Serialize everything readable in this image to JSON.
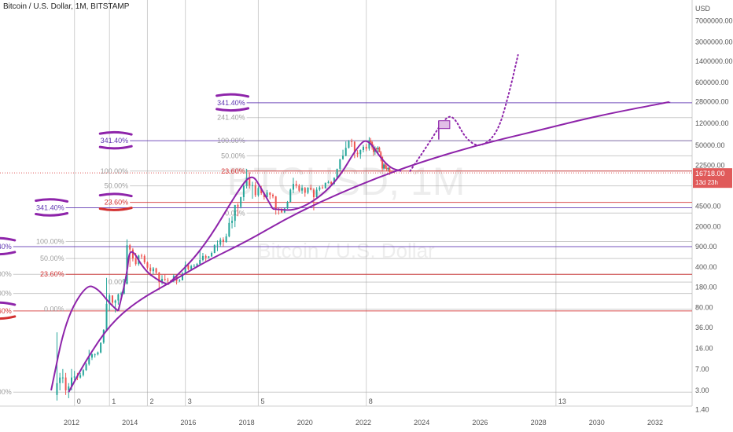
{
  "chart_data": {
    "type": "candlestick",
    "title": "Bitcoin / U.S. Dollar, 1M, BITSTAMP",
    "watermark_symbol": "BTCUSD, 1M",
    "watermark_name": "Bitcoin / U.S. Dollar",
    "y_axis_unit": "USD",
    "y_scale": "log",
    "y_ticks": [
      "7000000.00",
      "3000000.00",
      "1400000.00",
      "600000.00",
      "280000.00",
      "120000.00",
      "50000.00",
      "22500.00",
      "4500.00",
      "2000.00",
      "900.00",
      "400.00",
      "180.00",
      "80.00",
      "36.00",
      "16.00",
      "7.00",
      "3.00",
      "1.40"
    ],
    "y_tick_values": [
      7000000,
      3000000,
      1400000,
      600000,
      280000,
      120000,
      50000,
      22500,
      4500,
      2000,
      900,
      400,
      180,
      80,
      36,
      16,
      7,
      3,
      1.4
    ],
    "x_ticks": [
      "2012",
      "2014",
      "2016",
      "2018",
      "2020",
      "2022",
      "2024",
      "2026",
      "2028",
      "2030",
      "2032"
    ],
    "x_tick_values": [
      2012,
      2014,
      2016,
      2018,
      2020,
      2022,
      2024,
      2026,
      2028,
      2030,
      2032
    ],
    "cycle_markers": [
      "0",
      "1",
      "2",
      "3",
      "5",
      "8",
      "13"
    ],
    "cycle_marker_years": [
      2012.1,
      2013.3,
      2014.6,
      2015.9,
      2018.4,
      2022.1,
      2028.6
    ],
    "last_price": "16718.00",
    "countdown": "13d 23h",
    "price_line_color": "#e05a5a",
    "fib_color_gray": "#9e9e9e",
    "fib_color_red": "#d32f2f",
    "fib_color_purple": "#5e35b1",
    "annotation_color": "#8e24aa",
    "fib_sets": [
      {
        "name": "set1",
        "anchor_year": 2010.0,
        "levels": [
          {
            "label": "341.40%",
            "value": 900,
            "color": "purple",
            "boxed": true
          },
          {
            "label": "100.00%",
            "value": 300,
            "color": "gray"
          },
          {
            "label": "50.00%",
            "value": 140,
            "color": "gray"
          },
          {
            "label": "23.60%",
            "value": 70,
            "color": "red",
            "boxed": true
          },
          {
            "label": "0.00%",
            "value": 2.8,
            "color": "gray"
          }
        ]
      },
      {
        "name": "set2",
        "anchor_year": 2011.8,
        "levels": [
          {
            "label": "341.40%",
            "value": 4200,
            "color": "purple",
            "boxed": true
          },
          {
            "label": "100.00%",
            "value": 1100,
            "color": "gray"
          },
          {
            "label": "50.00%",
            "value": 560,
            "color": "gray"
          },
          {
            "label": "23.60%",
            "value": 300,
            "color": "red"
          },
          {
            "label": "0.00%",
            "value": 75,
            "color": "gray"
          }
        ]
      },
      {
        "name": "set3",
        "anchor_year": 2014.0,
        "levels": [
          {
            "label": "341.40%",
            "value": 60000,
            "color": "purple",
            "boxed": true
          },
          {
            "label": "100.00%",
            "value": 18000,
            "color": "gray"
          },
          {
            "label": "50.00%",
            "value": 10000,
            "color": "gray"
          },
          {
            "label": "23.60%",
            "value": 5200,
            "color": "red",
            "boxed": true
          },
          {
            "label": "0.00%",
            "value": 220,
            "color": "gray"
          }
        ]
      },
      {
        "name": "set4",
        "anchor_year": 2018.0,
        "levels": [
          {
            "label": "341.40%",
            "value": 270000,
            "color": "purple",
            "boxed": true
          },
          {
            "label": "241.40%",
            "value": 150000,
            "color": "gray"
          },
          {
            "label": "100.00%",
            "value": 60000,
            "color": "gray"
          },
          {
            "label": "50.00%",
            "value": 33000,
            "color": "gray"
          },
          {
            "label": "23.60%",
            "value": 18000,
            "color": "red"
          },
          {
            "label": "0.00%",
            "value": 3400,
            "color": "gray"
          }
        ]
      }
    ],
    "candles": [
      [
        2011.5,
        2.5,
        30,
        2.0,
        4
      ],
      [
        2011.6,
        4,
        6,
        3,
        5
      ],
      [
        2011.7,
        5,
        7,
        4,
        5
      ],
      [
        2011.8,
        5,
        6,
        2.5,
        3
      ],
      [
        2011.9,
        3,
        4,
        2.2,
        3.5
      ],
      [
        2012.0,
        3.5,
        7,
        3,
        5
      ],
      [
        2012.1,
        5,
        6.5,
        4.5,
        5.2
      ],
      [
        2012.2,
        5.2,
        6,
        4.5,
        5
      ],
      [
        2012.3,
        5,
        6,
        4.8,
        5.5
      ],
      [
        2012.4,
        5.5,
        7,
        5.2,
        6.7
      ],
      [
        2012.5,
        6.7,
        9,
        6.5,
        8.5
      ],
      [
        2012.6,
        8.5,
        15,
        8,
        11
      ],
      [
        2012.7,
        11,
        13,
        10,
        12.5
      ],
      [
        2012.8,
        12.5,
        13,
        11,
        12.5
      ],
      [
        2012.9,
        12.5,
        14,
        12,
        13.5
      ],
      [
        2013.0,
        13.5,
        20,
        13,
        20
      ],
      [
        2013.1,
        20,
        34,
        19,
        33
      ],
      [
        2013.2,
        33,
        260,
        32,
        93
      ],
      [
        2013.3,
        93,
        140,
        70,
        130
      ],
      [
        2013.4,
        130,
        130,
        85,
        97
      ],
      [
        2013.5,
        97,
        110,
        66,
        106
      ],
      [
        2013.6,
        106,
        140,
        90,
        135
      ],
      [
        2013.7,
        135,
        150,
        120,
        140
      ],
      [
        2013.8,
        140,
        250,
        135,
        210
      ],
      [
        2013.9,
        210,
        1200,
        200,
        950
      ],
      [
        2014.0,
        950,
        1000,
        400,
        800
      ],
      [
        2014.1,
        800,
        850,
        500,
        560
      ],
      [
        2014.2,
        560,
        700,
        420,
        450
      ],
      [
        2014.3,
        450,
        650,
        420,
        630
      ],
      [
        2014.4,
        630,
        680,
        550,
        620
      ],
      [
        2014.5,
        620,
        660,
        450,
        480
      ],
      [
        2014.6,
        480,
        500,
        360,
        390
      ],
      [
        2014.7,
        390,
        450,
        280,
        340
      ],
      [
        2014.8,
        340,
        400,
        300,
        380
      ],
      [
        2014.9,
        380,
        390,
        300,
        320
      ],
      [
        2015.0,
        320,
        330,
        160,
        220
      ],
      [
        2015.1,
        220,
        290,
        200,
        250
      ],
      [
        2015.2,
        250,
        300,
        230,
        240
      ],
      [
        2015.3,
        240,
        260,
        210,
        235
      ],
      [
        2015.4,
        235,
        240,
        220,
        230
      ],
      [
        2015.5,
        230,
        300,
        220,
        280
      ],
      [
        2015.6,
        280,
        290,
        200,
        230
      ],
      [
        2015.7,
        230,
        250,
        220,
        236
      ],
      [
        2015.8,
        236,
        330,
        235,
        310
      ],
      [
        2015.9,
        310,
        500,
        300,
        430
      ],
      [
        2016.0,
        430,
        470,
        350,
        370
      ],
      [
        2016.1,
        370,
        440,
        360,
        415
      ],
      [
        2016.2,
        415,
        450,
        400,
        420
      ],
      [
        2016.3,
        420,
        470,
        410,
        450
      ],
      [
        2016.4,
        450,
        780,
        440,
        530
      ],
      [
        2016.5,
        530,
        700,
        500,
        620
      ],
      [
        2016.6,
        620,
        660,
        500,
        575
      ],
      [
        2016.7,
        575,
        620,
        560,
        610
      ],
      [
        2016.8,
        610,
        740,
        600,
        700
      ],
      [
        2016.9,
        700,
        980,
        690,
        960
      ],
      [
        2017.0,
        960,
        1150,
        750,
        970
      ],
      [
        2017.1,
        970,
        1280,
        900,
        1190
      ],
      [
        2017.2,
        1190,
        1300,
        900,
        1080
      ],
      [
        2017.3,
        1080,
        1500,
        1050,
        1350
      ],
      [
        2017.4,
        1350,
        2800,
        1300,
        2300
      ],
      [
        2017.5,
        2300,
        3000,
        1850,
        2500
      ],
      [
        2017.6,
        2500,
        4500,
        1950,
        4700
      ],
      [
        2017.7,
        4700,
        5000,
        3000,
        4350
      ],
      [
        2017.8,
        4350,
        6500,
        4100,
        6400
      ],
      [
        2017.9,
        6400,
        11400,
        5500,
        10000
      ],
      [
        2018.0,
        10000,
        19700,
        9000,
        13800
      ],
      [
        2018.1,
        13800,
        17200,
        9000,
        10100
      ],
      [
        2018.2,
        10100,
        11800,
        6000,
        10300
      ],
      [
        2018.3,
        10300,
        11700,
        6400,
        6900
      ],
      [
        2018.4,
        6900,
        9800,
        6500,
        9200
      ],
      [
        2018.5,
        9200,
        10000,
        7000,
        7500
      ],
      [
        2018.6,
        7500,
        7800,
        5800,
        6400
      ],
      [
        2018.7,
        6400,
        8500,
        6100,
        7700
      ],
      [
        2018.8,
        7700,
        7800,
        5900,
        7000
      ],
      [
        2018.9,
        7000,
        7400,
        6100,
        6600
      ],
      [
        2019.0,
        6600,
        6700,
        3200,
        4000
      ],
      [
        2019.1,
        4000,
        4300,
        3200,
        3800
      ],
      [
        2019.2,
        3800,
        4200,
        3400,
        3500
      ],
      [
        2019.3,
        3500,
        4200,
        3400,
        4100
      ],
      [
        2019.4,
        4100,
        5500,
        4000,
        5300
      ],
      [
        2019.5,
        5300,
        9000,
        5200,
        8600
      ],
      [
        2019.6,
        8600,
        13800,
        7500,
        10800
      ],
      [
        2019.7,
        10800,
        12300,
        9100,
        10100
      ],
      [
        2019.8,
        10100,
        10800,
        7800,
        8300
      ],
      [
        2019.9,
        8300,
        10400,
        7300,
        9200
      ],
      [
        2020.0,
        9200,
        9600,
        6500,
        7600
      ],
      [
        2020.1,
        7600,
        9500,
        7200,
        9300
      ],
      [
        2020.2,
        9300,
        10500,
        8400,
        8600
      ],
      [
        2020.3,
        8600,
        9200,
        3800,
        6400
      ],
      [
        2020.4,
        6400,
        9500,
        6100,
        8600
      ],
      [
        2020.5,
        8600,
        10000,
        8100,
        9400
      ],
      [
        2020.6,
        9400,
        10400,
        8900,
        9100
      ],
      [
        2020.7,
        9100,
        11400,
        9000,
        11300
      ],
      [
        2020.8,
        11300,
        12400,
        11000,
        11600
      ],
      [
        2020.9,
        11600,
        12100,
        9900,
        10800
      ],
      [
        2021.0,
        10800,
        14000,
        10500,
        13800
      ],
      [
        2021.1,
        13800,
        19800,
        13200,
        19700
      ],
      [
        2021.2,
        19700,
        29000,
        17600,
        29000
      ],
      [
        2021.3,
        29000,
        41900,
        28100,
        33100
      ],
      [
        2021.4,
        33100,
        58300,
        32300,
        45200
      ],
      [
        2021.5,
        45200,
        61700,
        44000,
        58800
      ],
      [
        2021.6,
        58800,
        64800,
        47000,
        57700
      ],
      [
        2021.7,
        57700,
        58400,
        30000,
        37300
      ],
      [
        2021.8,
        37300,
        41300,
        31000,
        35000
      ],
      [
        2021.9,
        35000,
        42400,
        29300,
        41500
      ],
      [
        2022.0,
        41500,
        50500,
        37700,
        47100
      ],
      [
        2022.1,
        47100,
        52900,
        39600,
        43800
      ],
      [
        2022.2,
        43800,
        69000,
        40500,
        61300
      ],
      [
        2022.25,
        61300,
        66900,
        53000,
        57000
      ],
      [
        2022.3,
        57000,
        59000,
        42000,
        46300
      ],
      [
        2022.35,
        46300,
        52000,
        33000,
        38500
      ],
      [
        2022.4,
        38500,
        48000,
        34300,
        44300
      ],
      [
        2022.45,
        44300,
        45800,
        37700,
        43100
      ],
      [
        2022.5,
        43100,
        48200,
        37400,
        45500
      ],
      [
        2022.55,
        45500,
        47400,
        38200,
        37700
      ],
      [
        2022.6,
        37700,
        40000,
        26500,
        31800
      ],
      [
        2022.65,
        31800,
        32000,
        17600,
        19900
      ],
      [
        2022.7,
        19900,
        24600,
        18800,
        23300
      ],
      [
        2022.75,
        23300,
        25200,
        19500,
        20000
      ],
      [
        2022.8,
        20000,
        22700,
        18200,
        19400
      ],
      [
        2022.85,
        19400,
        21000,
        18300,
        20500
      ],
      [
        2022.9,
        20500,
        21500,
        15500,
        17100
      ],
      [
        2022.95,
        17100,
        18000,
        16300,
        16718
      ]
    ],
    "drawings": {
      "log_growth_curve": [
        [
          2011.9,
          2.8
        ],
        [
          2012.5,
          10
        ],
        [
          2013.3,
          40
        ],
        [
          2014.2,
          100
        ],
        [
          2015.4,
          220
        ],
        [
          2016.6,
          500
        ],
        [
          2018.0,
          1100
        ],
        [
          2019.5,
          3000
        ],
        [
          2021.0,
          6800
        ],
        [
          2022.5,
          14000
        ],
        [
          2024.0,
          26000
        ],
        [
          2026.0,
          52000
        ],
        [
          2028.0,
          90000
        ],
        [
          2030.0,
          160000
        ],
        [
          2032.5,
          280000
        ]
      ],
      "cycle_arcs": [
        [
          [
            2011.3,
            3
          ],
          [
            2011.8,
            50
          ],
          [
            2012.5,
            200
          ],
          [
            2012.9,
            170
          ],
          [
            2013.3,
            95
          ],
          [
            2013.6,
            70
          ]
        ],
        [
          [
            2013.6,
            70
          ],
          [
            2013.9,
            300
          ],
          [
            2014.0,
            950
          ],
          [
            2014.5,
            350
          ],
          [
            2015.0,
            230
          ],
          [
            2015.3,
            200
          ]
        ],
        [
          [
            2015.3,
            200
          ],
          [
            2016.5,
            800
          ],
          [
            2017.8,
            10000
          ],
          [
            2018.2,
            16000
          ],
          [
            2018.5,
            9000
          ],
          [
            2018.9,
            4000
          ]
        ],
        [
          [
            2018.9,
            4000
          ],
          [
            2019.8,
            3700
          ],
          [
            2021.0,
            10000
          ],
          [
            2021.9,
            58000
          ],
          [
            2022.2,
            60000
          ],
          [
            2022.6,
            30000
          ],
          [
            2022.95,
            20000
          ],
          [
            2023.3,
            18000
          ]
        ]
      ],
      "projection_dotted": [
        [
          2023.6,
          18000
        ],
        [
          2024.2,
          50000
        ],
        [
          2024.8,
          150000
        ],
        [
          2025.1,
          160000
        ],
        [
          2025.5,
          65000
        ],
        [
          2026.0,
          45000
        ],
        [
          2026.6,
          80000
        ],
        [
          2027.0,
          400000
        ],
        [
          2027.3,
          1800000
        ]
      ],
      "flag_position": [
        2024.8,
        110000
      ]
    }
  }
}
